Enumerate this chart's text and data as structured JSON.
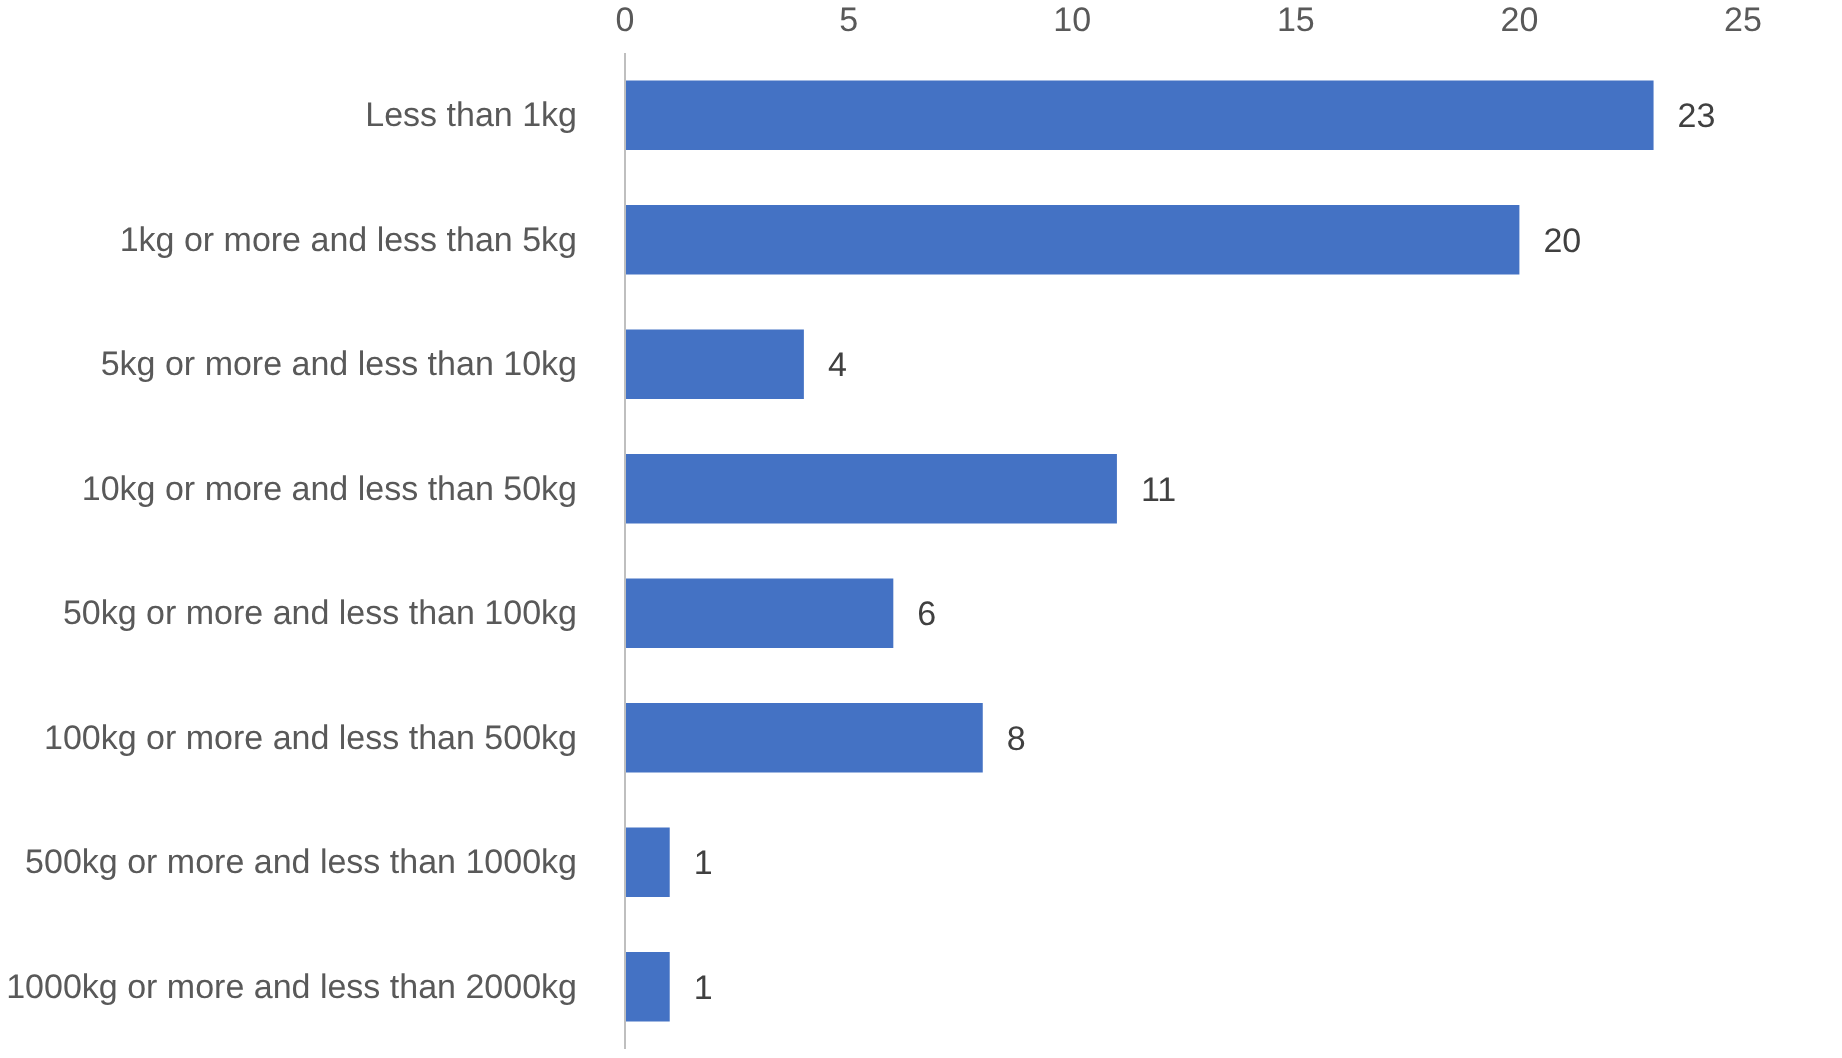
{
  "chart_data": {
    "type": "bar",
    "orientation": "horizontal",
    "categories": [
      "Less than 1kg",
      "1kg or more and less than 5kg",
      "5kg or more and less than 10kg",
      "10kg or more and less than 50kg",
      "50kg or more and less than 100kg",
      "100kg or more and less than 500kg",
      "500kg or more and less than 1000kg",
      "1000kg or more and less than 2000kg"
    ],
    "values": [
      23,
      20,
      4,
      11,
      6,
      8,
      1,
      1
    ],
    "color": "#4472c4",
    "xlim": [
      0,
      25
    ],
    "xticks": [
      0,
      5,
      10,
      15,
      20,
      25
    ],
    "data_labels": true
  }
}
